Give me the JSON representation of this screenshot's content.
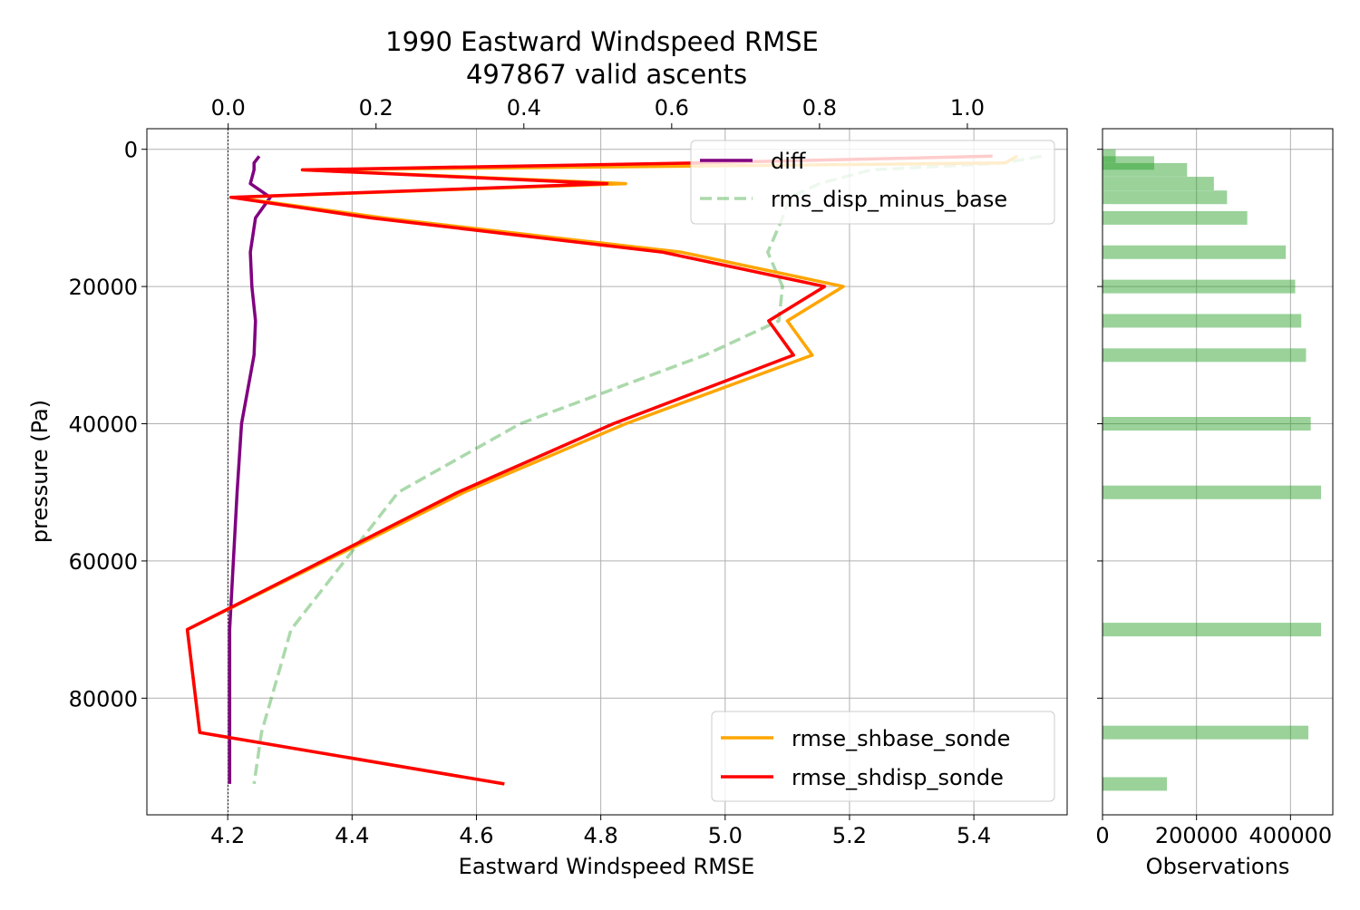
{
  "chart_data": {
    "type": "line",
    "title": "1990 Eastward Windspeed RMSE",
    "subtitle": "497867 valid ascents",
    "xlabel": "Eastward Windspeed RMSE",
    "ylabel": "pressure (Pa)",
    "x_bottom_range": [
      4.07,
      5.55
    ],
    "x_bottom_ticks": [
      "4.2",
      "4.4",
      "4.6",
      "4.8",
      "5.0",
      "5.2",
      "5.4"
    ],
    "x_top_range": [
      -0.11,
      1.135
    ],
    "x_top_ticks": [
      "0.0",
      "0.2",
      "0.4",
      "0.6",
      "0.8",
      "1.0"
    ],
    "y_range": [
      97000,
      -3000
    ],
    "y_ticks": [
      "0",
      "20000",
      "40000",
      "60000",
      "80000"
    ],
    "grid": true,
    "legend_upper": {
      "position": "top-right",
      "entries": [
        "diff",
        "rms_disp_minus_base"
      ]
    },
    "legend_lower": {
      "position": "bottom-right",
      "entries": [
        "rmse_shbase_sonde",
        "rmse_shdisp_sonde"
      ]
    },
    "colors": {
      "diff": "#800080",
      "rms_disp_minus_base": "#2ca02c",
      "rmse_shbase_sonde": "#ffa500",
      "rmse_shdisp_sonde": "#ff0000",
      "observations": "#2ca02c"
    },
    "pressure_levels": [
      1000,
      2000,
      3000,
      5000,
      7000,
      10000,
      15000,
      20000,
      25000,
      30000,
      40000,
      50000,
      70000,
      85000,
      92500
    ],
    "series": [
      {
        "name": "rmse_shbase_sonde",
        "axis": "bottom",
        "x": [
          5.47,
          5.45,
          4.32,
          4.84,
          4.21,
          4.45,
          4.93,
          5.19,
          5.1,
          5.14,
          4.84,
          4.58,
          4.135,
          4.155,
          4.645
        ]
      },
      {
        "name": "rmse_shdisp_sonde",
        "axis": "bottom",
        "x": [
          5.43,
          4.95,
          4.32,
          4.81,
          4.205,
          4.43,
          4.9,
          5.16,
          5.07,
          5.11,
          4.82,
          4.57,
          4.135,
          4.155,
          4.645
        ]
      },
      {
        "name": "diff",
        "axis": "top",
        "x": [
          0.042,
          0.035,
          0.035,
          0.03,
          0.057,
          0.037,
          0.03,
          0.032,
          0.037,
          0.035,
          0.018,
          0.012,
          0.002,
          0.002,
          0.002
        ]
      },
      {
        "name": "rms_disp_minus_base",
        "axis": "top",
        "x": [
          1.1,
          1.05,
          0.87,
          0.8,
          0.76,
          0.75,
          0.73,
          0.75,
          0.745,
          0.645,
          0.395,
          0.23,
          0.085,
          0.045,
          0.035
        ]
      }
    ],
    "observations": {
      "xlabel": "Observations",
      "x_range": [
        0,
        490000
      ],
      "x_ticks": [
        "0",
        "200000",
        "400000"
      ],
      "bars": [
        {
          "pressure": 1000,
          "count": 28000
        },
        {
          "pressure": 2000,
          "count": 110000
        },
        {
          "pressure": 3000,
          "count": 180000
        },
        {
          "pressure": 5000,
          "count": 237000
        },
        {
          "pressure": 7000,
          "count": 265000
        },
        {
          "pressure": 10000,
          "count": 308000
        },
        {
          "pressure": 15000,
          "count": 390000
        },
        {
          "pressure": 20000,
          "count": 410000
        },
        {
          "pressure": 25000,
          "count": 423000
        },
        {
          "pressure": 30000,
          "count": 433000
        },
        {
          "pressure": 40000,
          "count": 443000
        },
        {
          "pressure": 50000,
          "count": 465000
        },
        {
          "pressure": 70000,
          "count": 465000
        },
        {
          "pressure": 85000,
          "count": 438000
        },
        {
          "pressure": 92500,
          "count": 137000
        }
      ]
    }
  }
}
